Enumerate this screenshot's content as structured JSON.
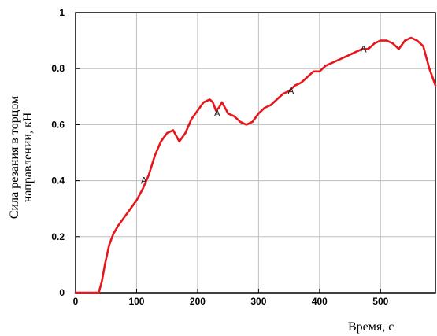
{
  "chart_data": {
    "type": "line",
    "title": "",
    "xlabel": "Время, с",
    "ylabel_line1": "Сила резания в торцом",
    "ylabel_line2": "направлении, кН",
    "xlim": [
      0,
      590
    ],
    "ylim": [
      0,
      1
    ],
    "x_ticks": [
      "0",
      "100",
      "200",
      "300",
      "400",
      "500"
    ],
    "x_tick_values": [
      0,
      100,
      200,
      300,
      400,
      500
    ],
    "y_ticks": [
      "0",
      "0.2",
      "0.4",
      "0.6",
      "0.8",
      "1"
    ],
    "y_tick_values": [
      0,
      0.2,
      0.4,
      0.6,
      0.8,
      1
    ],
    "grid": true,
    "line_color": "#e8161b",
    "series": [
      {
        "x": [
          0,
          10,
          20,
          30,
          38,
          43,
          48,
          55,
          62,
          70,
          80,
          90,
          100,
          110,
          120,
          130,
          140,
          150,
          160,
          170,
          180,
          190,
          200,
          210,
          220,
          225,
          230,
          235,
          240,
          245,
          250,
          260,
          270,
          280,
          290,
          300,
          310,
          320,
          330,
          340,
          350,
          360,
          370,
          380,
          390,
          400,
          410,
          420,
          430,
          440,
          450,
          460,
          470,
          480,
          490,
          500,
          510,
          520,
          530,
          540,
          550,
          560,
          570,
          580,
          590
        ],
        "y": [
          0,
          0,
          0,
          0,
          0,
          0.04,
          0.1,
          0.17,
          0.21,
          0.24,
          0.27,
          0.3,
          0.33,
          0.37,
          0.42,
          0.49,
          0.54,
          0.57,
          0.58,
          0.54,
          0.57,
          0.62,
          0.65,
          0.68,
          0.69,
          0.68,
          0.65,
          0.66,
          0.68,
          0.66,
          0.64,
          0.63,
          0.61,
          0.6,
          0.61,
          0.64,
          0.66,
          0.67,
          0.69,
          0.71,
          0.72,
          0.74,
          0.75,
          0.77,
          0.79,
          0.79,
          0.81,
          0.82,
          0.83,
          0.84,
          0.85,
          0.86,
          0.87,
          0.87,
          0.89,
          0.9,
          0.9,
          0.89,
          0.87,
          0.9,
          0.91,
          0.9,
          0.88,
          0.8,
          0.74
        ]
      }
    ],
    "markers": [
      {
        "label": "A",
        "x": 112,
        "y": 0.4
      },
      {
        "label": "A",
        "x": 232,
        "y": 0.64
      },
      {
        "label": "A",
        "x": 353,
        "y": 0.72
      },
      {
        "label": "A",
        "x": 472,
        "y": 0.87
      }
    ]
  }
}
